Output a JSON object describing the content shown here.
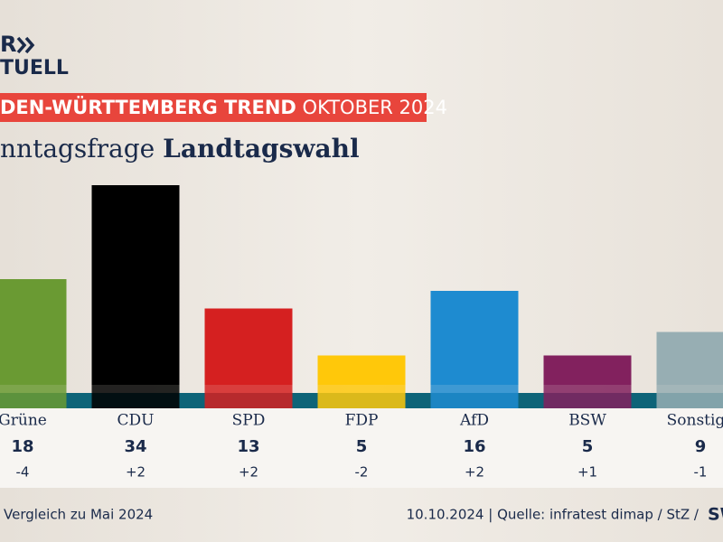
{
  "logo": {
    "top": "R",
    "bottom": "TUELL"
  },
  "header": {
    "title_bold": "DEN-WÜRTTEMBERG TREND",
    "title_light": "OKTOBER 2024"
  },
  "chart_data": {
    "type": "bar",
    "subtitle_light": "nntagsfrage",
    "subtitle_bold": "Landtagswahl",
    "categories": [
      "Grüne",
      "CDU",
      "SPD",
      "FDP",
      "AfD",
      "BSW",
      "Sonstige"
    ],
    "values": [
      18,
      34,
      13,
      5,
      16,
      5,
      9
    ],
    "colors": [
      "#6a9a33",
      "#000000",
      "#d52020",
      "#ffc80a",
      "#1e8bd0",
      "#82215e",
      "#97aeb3"
    ],
    "changes": [
      "-4",
      "+2",
      "+2",
      "-2",
      "+2",
      "+1",
      "-1"
    ]
  },
  "footer": {
    "note": "Vergleich zu Mai 2024",
    "source": "10.10.2024 | Quelle: infratest dimap / StZ /",
    "brand": "SW"
  }
}
